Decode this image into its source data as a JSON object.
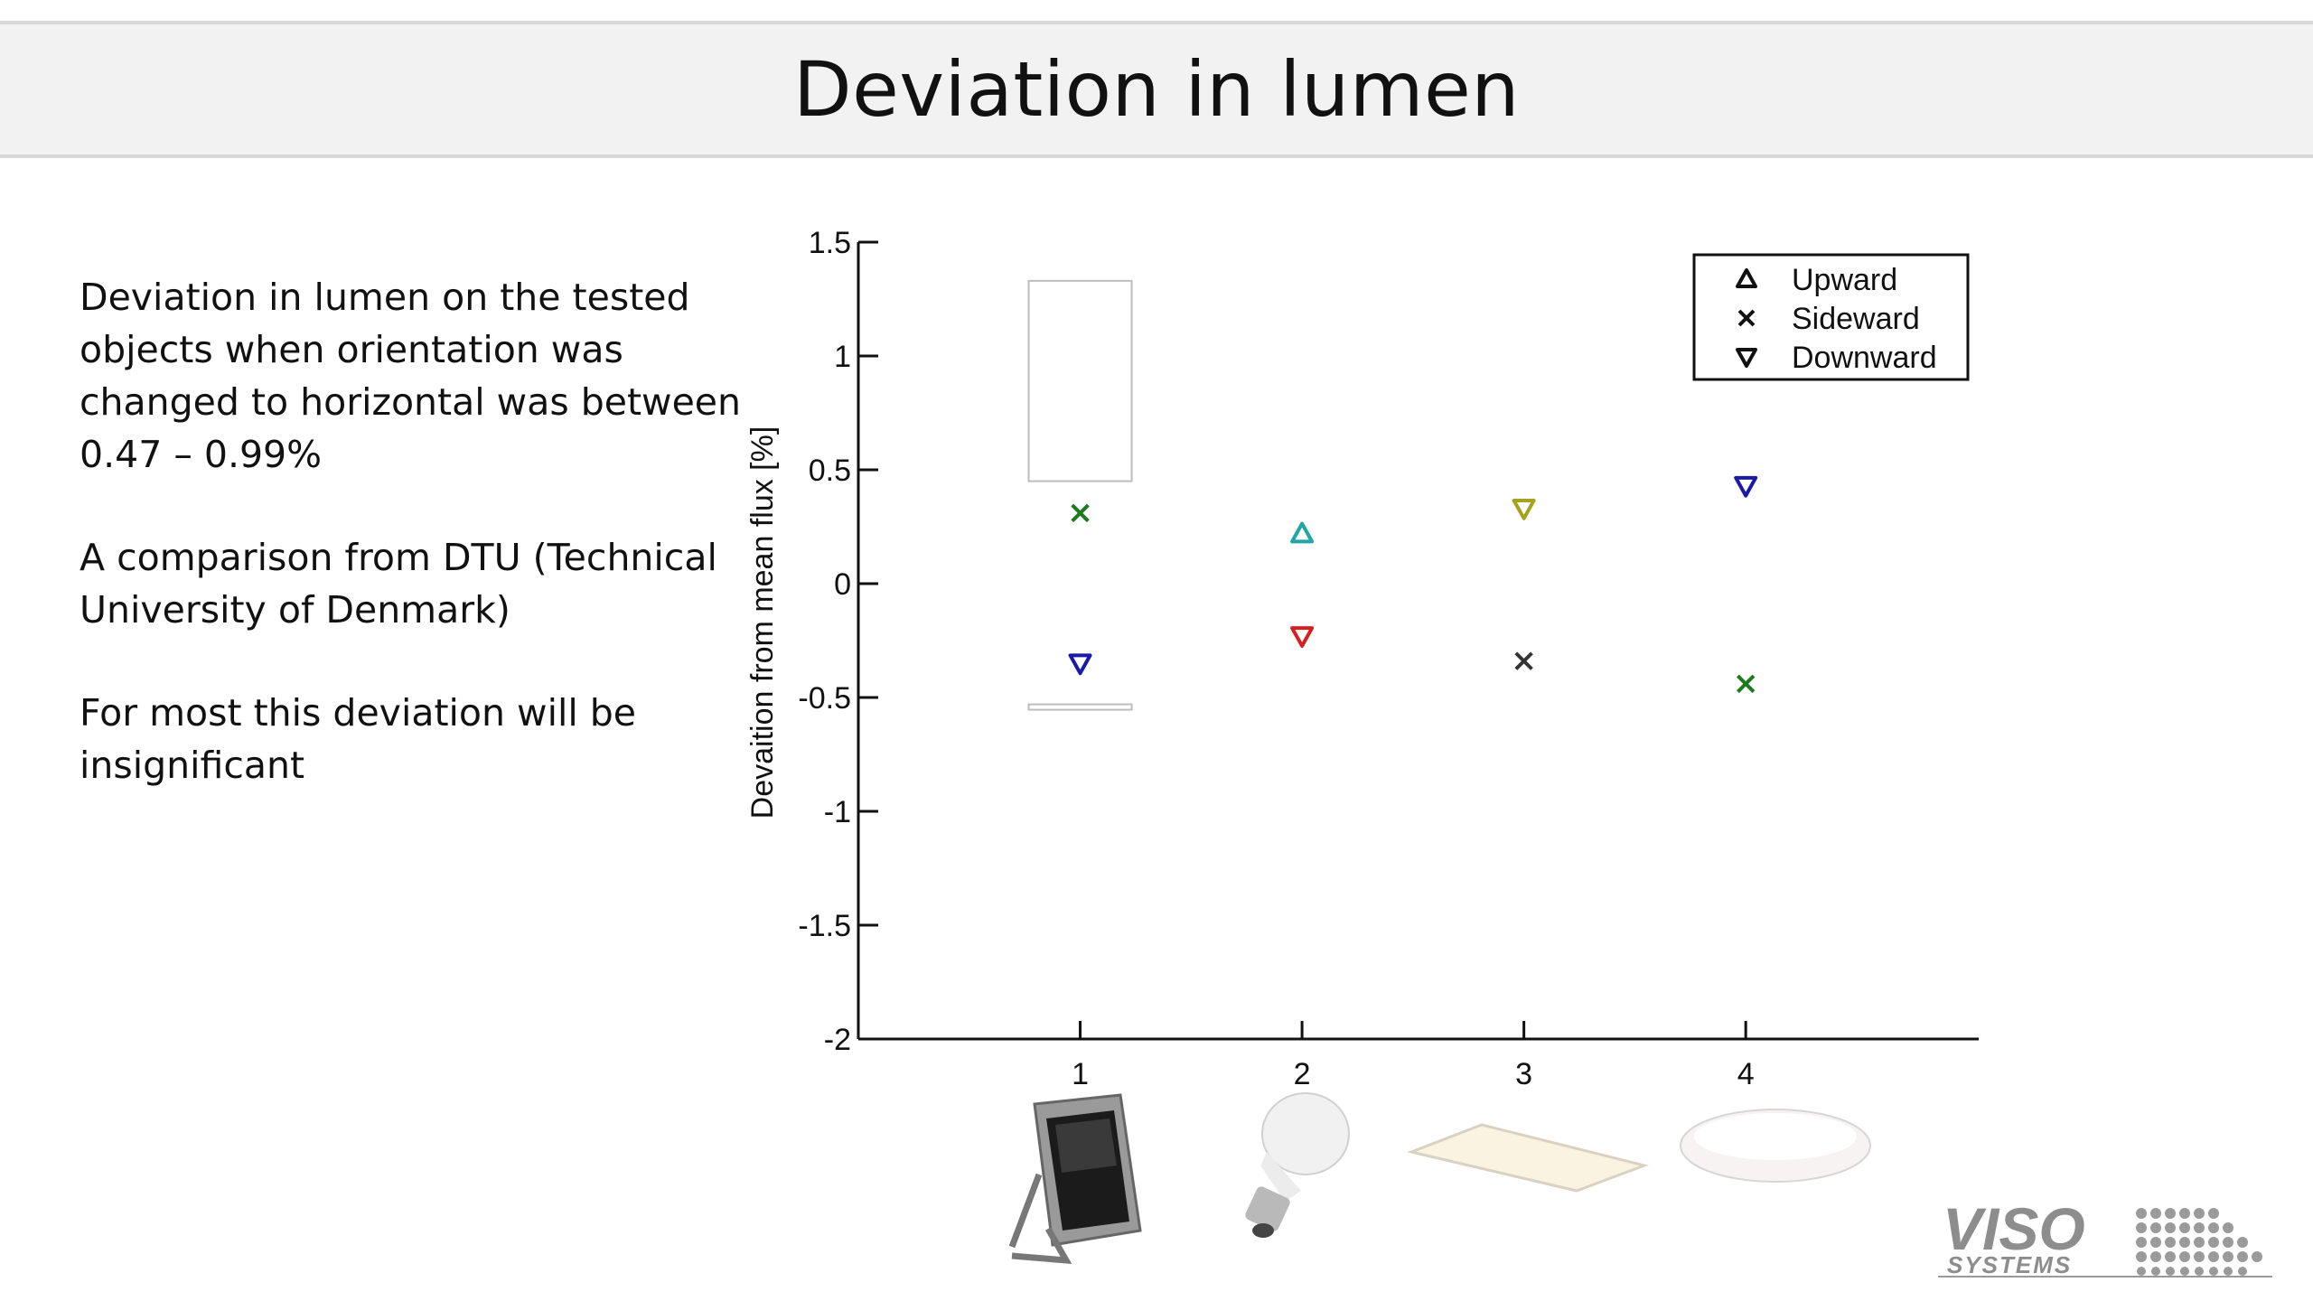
{
  "slide": {
    "title": "Deviation in lumen",
    "bullets": [
      "Deviation in lumen on the tested objects when orientation was changed to horizontal was between 0.47 – 0.99%",
      "A comparison from DTU (Technical University of Denmark)",
      "For most this deviation will be insignificant"
    ]
  },
  "chart_data": {
    "type": "scatter",
    "ylabel": "Devaition from mean flux [%]",
    "xlabel": "",
    "ylim": [
      -2,
      1.5
    ],
    "yticks": [
      1.5,
      1,
      0.5,
      0,
      -0.5,
      -1,
      -1.5,
      -2
    ],
    "ytick_labels": [
      "1.5",
      "1",
      "0.5",
      "0",
      "-0.5",
      "-1",
      "-1.5",
      "-2"
    ],
    "xlim": [
      0,
      5.05
    ],
    "categories": [
      "1",
      "2",
      "3",
      "4"
    ],
    "grid": false,
    "legend_position": "top-right",
    "legend": [
      {
        "label": "Upward",
        "marker": "triangle-up"
      },
      {
        "label": "Sideward",
        "marker": "x"
      },
      {
        "label": "Downward",
        "marker": "triangle-down"
      }
    ],
    "points": [
      {
        "x": 1,
        "y": 0.31,
        "marker": "x",
        "color": "#1e7a1e"
      },
      {
        "x": 1,
        "y": -0.35,
        "marker": "triangle-down",
        "color": "#1a1aaa"
      },
      {
        "x": 2,
        "y": 0.22,
        "marker": "triangle-up",
        "color": "#22a5a5"
      },
      {
        "x": 2,
        "y": -0.23,
        "marker": "triangle-down",
        "color": "#d62020"
      },
      {
        "x": 3,
        "y": 0.33,
        "marker": "triangle-down",
        "color": "#a6a21e"
      },
      {
        "x": 3,
        "y": -0.34,
        "marker": "x",
        "color": "#333333"
      },
      {
        "x": 4,
        "y": 0.43,
        "marker": "triangle-down",
        "color": "#1a1aaa"
      },
      {
        "x": 4,
        "y": -0.44,
        "marker": "x",
        "color": "#1e7a1e"
      }
    ]
  },
  "thumbnails": [
    {
      "icon": "floodlight-icon"
    },
    {
      "icon": "light-bulb-icon"
    },
    {
      "icon": "led-panel-icon"
    },
    {
      "icon": "ceiling-lamp-icon"
    }
  ],
  "logo": {
    "text_top": "VISO",
    "text_bottom": "SYSTEMS"
  },
  "colors": {
    "header_bg": "#f2f2f2",
    "axis": "#111111"
  }
}
